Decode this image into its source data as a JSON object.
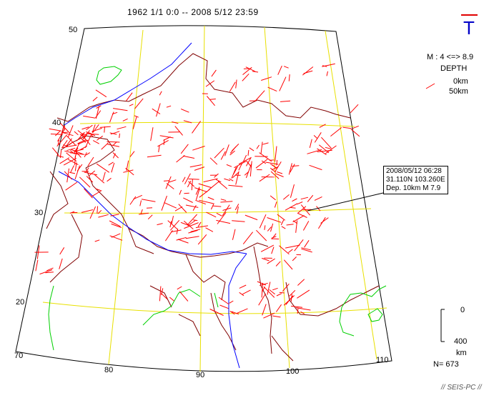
{
  "header": {
    "period": "1962 1/1  0:0 -- 2008 5/12 23:59"
  },
  "mode_symbol": {
    "letter": "T",
    "bar_color": "#e00000",
    "letter_color": "#0000c8"
  },
  "legend": {
    "magnitude_range": "M : 4 <=> 8.9",
    "depth_label": "DEPTH",
    "depth_0": "0km",
    "depth_50": "50km",
    "mark_color": "#ff0000"
  },
  "depth_scale": {
    "top_label": "0",
    "bottom_label": "400",
    "unit": "km"
  },
  "count": "N= 673",
  "credit": "// SEIS-PC //",
  "graticule": {
    "latitudes": [
      "50",
      "40",
      "30",
      "20"
    ],
    "longitudes": [
      "70",
      "80",
      "90",
      "100",
      "110"
    ]
  },
  "callout": {
    "datetime": "2008/05/12 06:28",
    "location": "31.110N  103.260E",
    "details": "Dep. 10km    M 7.9"
  },
  "colors": {
    "graticule": "#e8e000",
    "border": "#800000",
    "coast": "#00d000",
    "plate_line": "#0000ff",
    "quake": "#ff0000"
  }
}
